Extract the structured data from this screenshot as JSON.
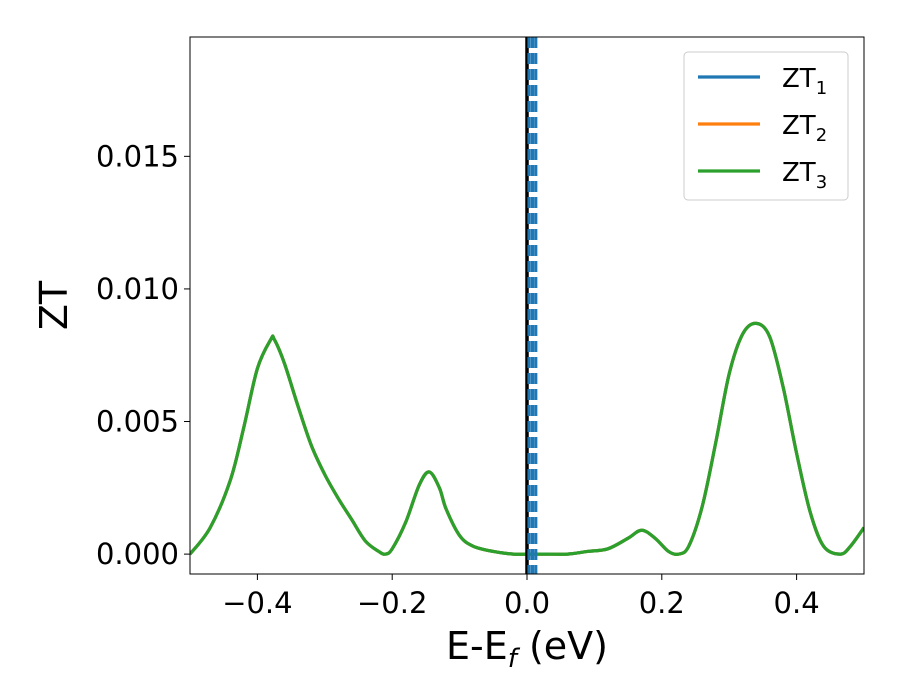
{
  "chart_data": {
    "type": "line",
    "xlabel": {
      "base": "E-E",
      "sub": "f",
      "suffix": " (eV)"
    },
    "ylabel": "ZT",
    "xlim": [
      -0.5,
      0.5
    ],
    "ylim": [
      -0.00075,
      0.0195
    ],
    "xticks": [
      -0.4,
      -0.2,
      0.0,
      0.2,
      0.4
    ],
    "xtick_labels": [
      "−0.4",
      "−0.2",
      "0.0",
      "0.2",
      "0.4"
    ],
    "yticks": [
      0.0,
      0.005,
      0.01,
      0.015
    ],
    "ytick_labels": [
      "0.000",
      "0.005",
      "0.010",
      "0.015"
    ],
    "grid": false,
    "legend_position": "top-right",
    "series": [
      {
        "name": "ZT",
        "sub": "1",
        "color": "#1f77b4",
        "x": [
          -0.5,
          -0.47,
          -0.44,
          -0.42,
          -0.4,
          -0.38,
          -0.375,
          -0.36,
          -0.34,
          -0.32,
          -0.3,
          -0.28,
          -0.26,
          -0.24,
          -0.22,
          -0.21,
          -0.2,
          -0.18,
          -0.16,
          -0.145,
          -0.13,
          -0.12,
          -0.1,
          -0.08,
          -0.05,
          -0.02,
          0.0,
          0.03,
          0.06,
          0.09,
          0.12,
          0.15,
          0.17,
          0.19,
          0.21,
          0.225,
          0.24,
          0.26,
          0.28,
          0.3,
          0.32,
          0.34,
          0.36,
          0.38,
          0.4,
          0.42,
          0.44,
          0.465,
          0.48,
          0.5
        ],
        "y": [
          0.0,
          0.001,
          0.0028,
          0.0048,
          0.007,
          0.0081,
          0.0081,
          0.0072,
          0.0056,
          0.0041,
          0.003,
          0.0021,
          0.0013,
          0.0005,
          0.0001,
          0.0,
          0.0002,
          0.0012,
          0.0026,
          0.0031,
          0.0025,
          0.0017,
          0.0007,
          0.0003,
          0.0001,
          0.0,
          0.0,
          0.0,
          0.0,
          0.0001,
          0.0002,
          0.0006,
          0.0009,
          0.0006,
          0.0001,
          0.0,
          0.0003,
          0.0018,
          0.0042,
          0.0068,
          0.0083,
          0.0087,
          0.0082,
          0.0063,
          0.0038,
          0.0016,
          0.0003,
          0.0,
          0.0003,
          0.001
        ]
      },
      {
        "name": "ZT",
        "sub": "2",
        "color": "#ff7f0e",
        "x": [
          -0.5,
          -0.47,
          -0.44,
          -0.42,
          -0.4,
          -0.38,
          -0.375,
          -0.36,
          -0.34,
          -0.32,
          -0.3,
          -0.28,
          -0.26,
          -0.24,
          -0.22,
          -0.21,
          -0.2,
          -0.18,
          -0.16,
          -0.145,
          -0.13,
          -0.12,
          -0.1,
          -0.08,
          -0.05,
          -0.02,
          0.0,
          0.03,
          0.06,
          0.09,
          0.12,
          0.15,
          0.17,
          0.19,
          0.21,
          0.225,
          0.24,
          0.26,
          0.28,
          0.3,
          0.32,
          0.34,
          0.36,
          0.38,
          0.4,
          0.42,
          0.44,
          0.465,
          0.48,
          0.5
        ],
        "y": [
          0.0,
          0.001,
          0.0028,
          0.0048,
          0.007,
          0.0081,
          0.0081,
          0.0072,
          0.0056,
          0.0041,
          0.003,
          0.0021,
          0.0013,
          0.0005,
          0.0001,
          0.0,
          0.0002,
          0.0012,
          0.0026,
          0.0031,
          0.0025,
          0.0017,
          0.0007,
          0.0003,
          0.0001,
          0.0,
          0.0,
          0.0,
          0.0,
          0.0001,
          0.0002,
          0.0006,
          0.0009,
          0.0006,
          0.0001,
          0.0,
          0.0003,
          0.0018,
          0.0042,
          0.0068,
          0.0083,
          0.0087,
          0.0082,
          0.0063,
          0.0038,
          0.0016,
          0.0003,
          0.0,
          0.0003,
          0.001
        ]
      },
      {
        "name": "ZT",
        "sub": "3",
        "color": "#2ca02c",
        "x": [
          -0.5,
          -0.47,
          -0.44,
          -0.42,
          -0.4,
          -0.38,
          -0.375,
          -0.36,
          -0.34,
          -0.32,
          -0.3,
          -0.28,
          -0.26,
          -0.24,
          -0.22,
          -0.21,
          -0.2,
          -0.18,
          -0.16,
          -0.145,
          -0.13,
          -0.12,
          -0.1,
          -0.08,
          -0.05,
          -0.02,
          0.0,
          0.03,
          0.06,
          0.09,
          0.12,
          0.15,
          0.17,
          0.19,
          0.21,
          0.225,
          0.24,
          0.26,
          0.28,
          0.3,
          0.32,
          0.34,
          0.36,
          0.38,
          0.4,
          0.42,
          0.44,
          0.465,
          0.48,
          0.5
        ],
        "y": [
          0.0,
          0.001,
          0.0028,
          0.0048,
          0.007,
          0.0081,
          0.0081,
          0.0072,
          0.0056,
          0.0041,
          0.003,
          0.0021,
          0.0013,
          0.0005,
          0.0001,
          0.0,
          0.0002,
          0.0012,
          0.0026,
          0.0031,
          0.0025,
          0.0017,
          0.0007,
          0.0003,
          0.0001,
          0.0,
          0.0,
          0.0,
          0.0,
          0.0001,
          0.0002,
          0.0006,
          0.0009,
          0.0006,
          0.0001,
          0.0,
          0.0003,
          0.0018,
          0.0042,
          0.0068,
          0.0083,
          0.0087,
          0.0082,
          0.0063,
          0.0038,
          0.0016,
          0.0003,
          0.0,
          0.0003,
          0.001
        ]
      }
    ],
    "reference_lines": [
      {
        "x": 0.0,
        "color": "#000000",
        "style": "solid"
      },
      {
        "x": 0.003,
        "color": "#1f77b4",
        "style": "dashed"
      },
      {
        "x": 0.008,
        "color": "#1f77b4",
        "style": "dashed"
      },
      {
        "x": 0.013,
        "color": "#1f77b4",
        "style": "dashed"
      }
    ]
  }
}
